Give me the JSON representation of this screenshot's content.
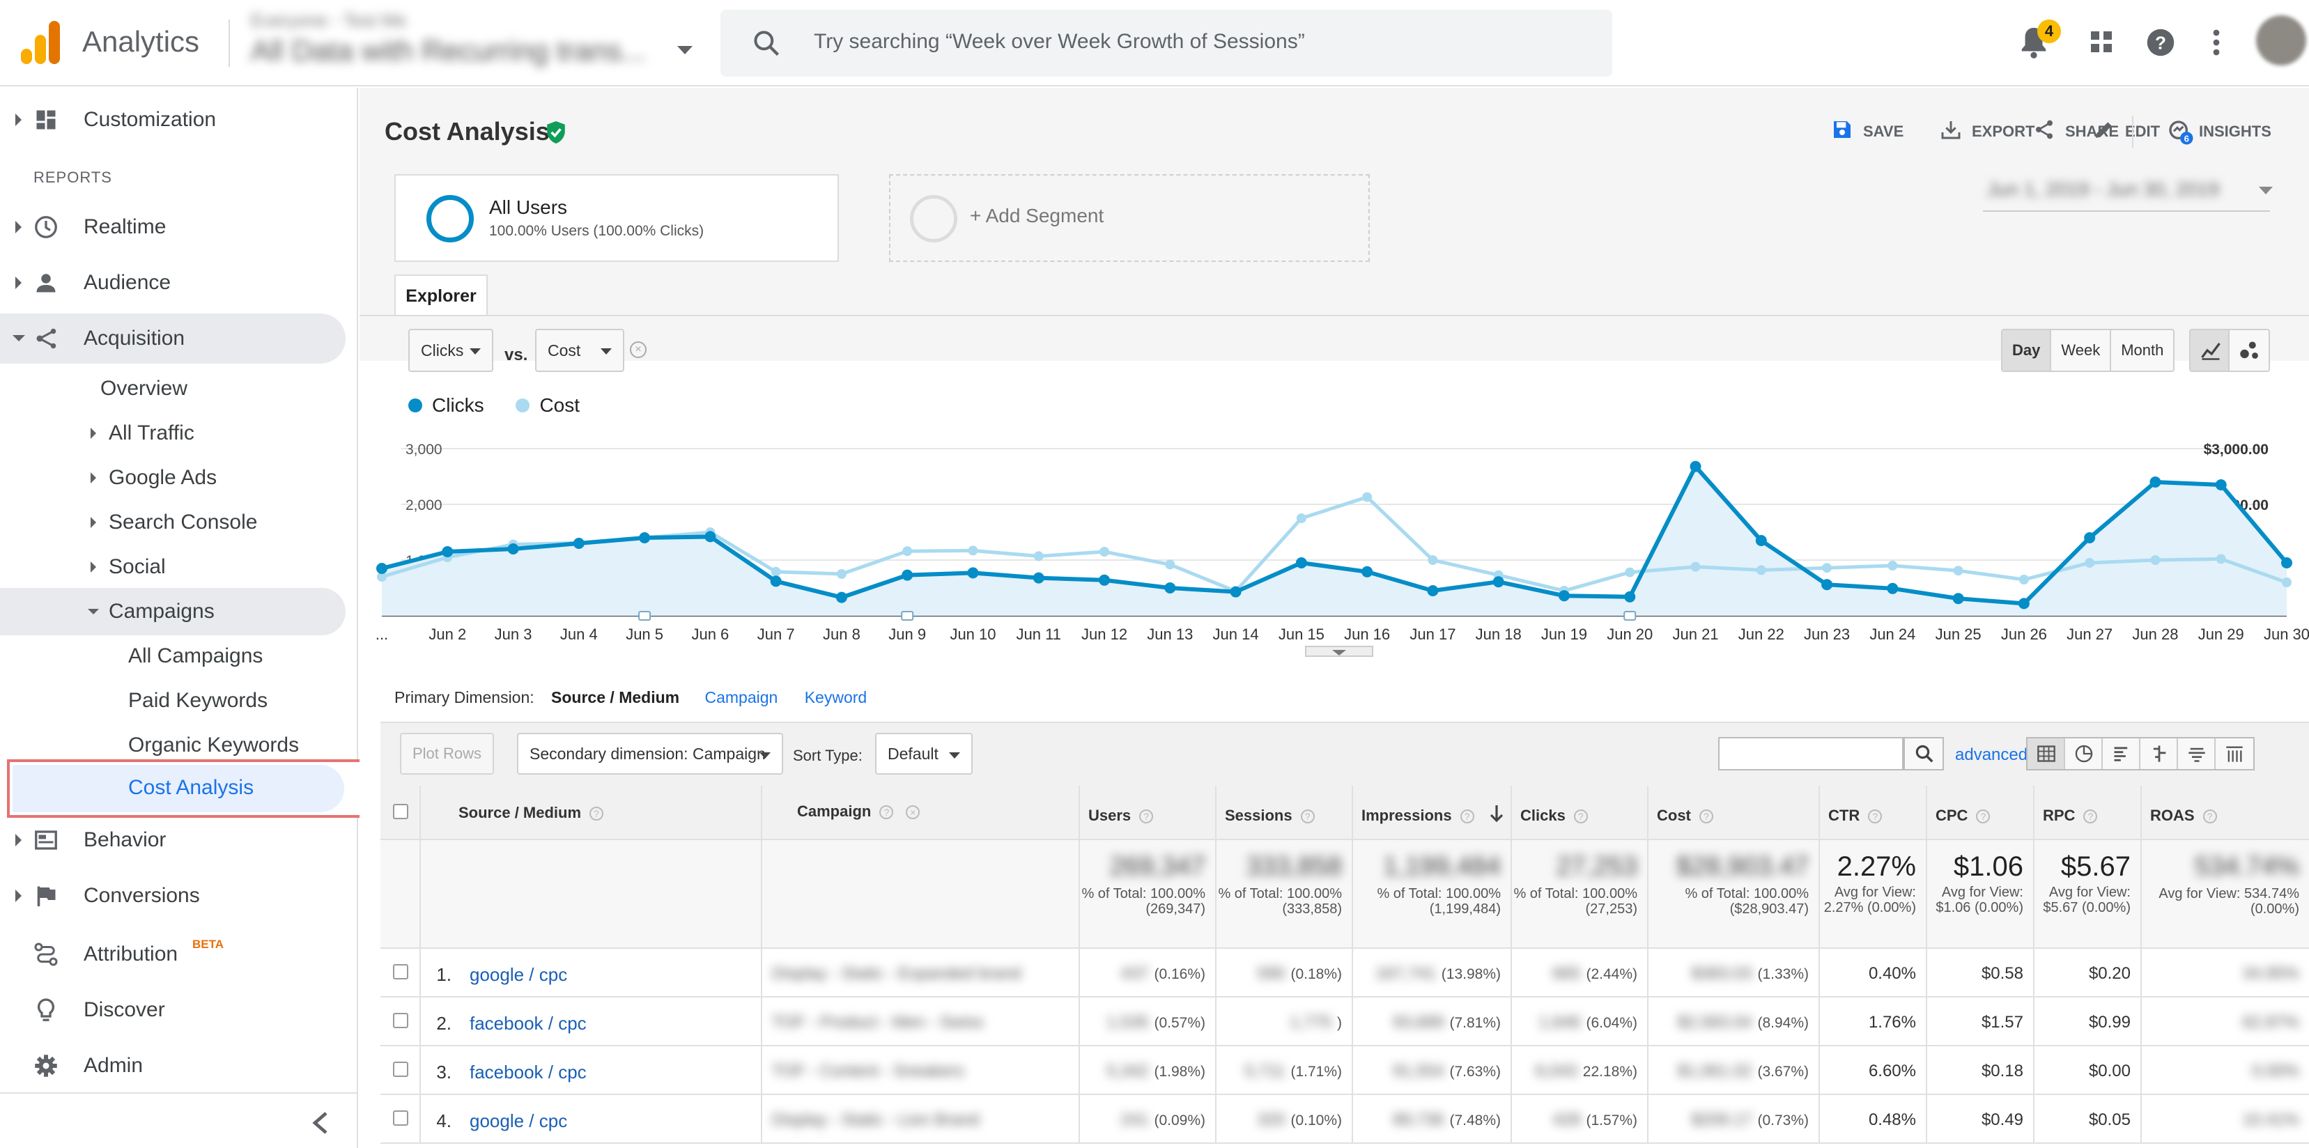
{
  "app": {
    "title": "Analytics"
  },
  "account": {
    "line1": "Everyone - Test Me",
    "line2": "All Data with Recurring trans..."
  },
  "search": {
    "placeholder": "Try searching “Week over Week Growth of Sessions”"
  },
  "topbar": {
    "notification_count": "4",
    "icons": [
      "bell-icon",
      "apps-grid-icon",
      "help-icon",
      "more-vert-icon",
      "avatar"
    ]
  },
  "sidebar": {
    "customization": "Customization",
    "reports_header": "REPORTS",
    "realtime": "Realtime",
    "audience": "Audience",
    "acquisition": "Acquisition",
    "overview": "Overview",
    "all_traffic": "All Traffic",
    "google_ads": "Google Ads",
    "search_console": "Search Console",
    "social": "Social",
    "campaigns": "Campaigns",
    "all_campaigns": "All Campaigns",
    "paid_keywords": "Paid Keywords",
    "organic_keywords": "Organic Keywords",
    "cost_analysis": "Cost Analysis",
    "behavior": "Behavior",
    "conversions": "Conversions",
    "attribution": "Attribution",
    "attribution_badge": "BETA",
    "discover": "Discover",
    "admin": "Admin"
  },
  "header": {
    "title": "Cost Analysis",
    "actions": {
      "save": "SAVE",
      "export": "EXPORT",
      "share": "SHARE",
      "edit": "EDIT",
      "insights": "INSIGHTS"
    },
    "insights_badge": "6"
  },
  "segments": {
    "active_name": "All Users",
    "active_detail": "100.00% Users (100.00% Clicks)",
    "add_label": "+ Add Segment",
    "date_range": "Jun 1, 2019 - Jun 30, 2019"
  },
  "explorer": {
    "tab": "Explorer",
    "metric1": "Clicks",
    "vs": "vs.",
    "metric2": "Cost",
    "remove": "×",
    "granularity": [
      "Day",
      "Week",
      "Month"
    ],
    "granularity_selected": "Day"
  },
  "chart_data": {
    "type": "line",
    "categories": [
      "...",
      "Jun 2",
      "Jun 3",
      "Jun 4",
      "Jun 5",
      "Jun 6",
      "Jun 7",
      "Jun 8",
      "Jun 9",
      "Jun 10",
      "Jun 11",
      "Jun 12",
      "Jun 13",
      "Jun 14",
      "Jun 15",
      "Jun 16",
      "Jun 17",
      "Jun 18",
      "Jun 19",
      "Jun 20",
      "Jun 21",
      "Jun 22",
      "Jun 23",
      "Jun 24",
      "Jun 25",
      "Jun 26",
      "Jun 27",
      "Jun 28",
      "Jun 29",
      "Jun 30"
    ],
    "series": [
      {
        "name": "Clicks",
        "axis": "left",
        "color": "#058dc7",
        "values": [
          850,
          1150,
          1200,
          1300,
          1400,
          1420,
          620,
          330,
          730,
          770,
          680,
          640,
          500,
          430,
          950,
          790,
          450,
          610,
          360,
          340,
          2680,
          1350,
          560,
          490,
          310,
          220,
          1400,
          2400,
          2350,
          950
        ]
      },
      {
        "name": "Cost",
        "axis": "right",
        "color": "#a9daf0",
        "values": [
          700,
          1050,
          1280,
          1310,
          1400,
          1500,
          790,
          750,
          1160,
          1170,
          1070,
          1150,
          920,
          440,
          1750,
          2130,
          1000,
          730,
          450,
          780,
          880,
          820,
          860,
          900,
          810,
          650,
          950,
          1000,
          1020,
          600
        ]
      }
    ],
    "y_left": {
      "ticks": [
        "1,000",
        "2,000",
        "3,000"
      ],
      "range": [
        0,
        3000
      ]
    },
    "y_right": {
      "ticks": [
        "$1,000.00",
        "$2,000.00",
        "$3,000.00"
      ],
      "range": [
        0,
        3000
      ]
    },
    "legend": "top-left"
  },
  "table_controls": {
    "primary_dimension_label": "Primary Dimension:",
    "primary_current": "Source / Medium",
    "primary_links": [
      "Campaign",
      "Keyword"
    ],
    "plot_rows": "Plot Rows",
    "secondary_dimension": "Secondary dimension: Campaign",
    "sort_type_label": "Sort Type:",
    "sort_type": "Default",
    "advanced": "advanced"
  },
  "table": {
    "headers": [
      "Source / Medium",
      "Campaign",
      "Users",
      "Sessions",
      "Impressions",
      "Clicks",
      "Cost",
      "CTR",
      "CPC",
      "RPC",
      "ROAS"
    ],
    "totals": {
      "users": {
        "value": "269,347",
        "sub": "% of Total: 100.00% (269,347)"
      },
      "sessions": {
        "value": "333,858",
        "sub": "% of Total: 100.00% (333,858)"
      },
      "impressions": {
        "value": "1,199,484",
        "sub": "% of Total: 100.00% (1,199,484)"
      },
      "clicks": {
        "value": "27,253",
        "sub": "% of Total: 100.00% (27,253)"
      },
      "cost": {
        "value": "$28,903.47",
        "sub": "% of Total: 100.00% ($28,903.47)"
      },
      "ctr": {
        "value": "2.27%",
        "sub": "Avg for View: 2.27% (0.00%)"
      },
      "cpc": {
        "value": "$1.06",
        "sub": "Avg for View: $1.06 (0.00%)"
      },
      "rpc": {
        "value": "$5.67",
        "sub": "Avg for View: $5.67 (0.00%)"
      },
      "roas": {
        "value": "534.74%",
        "sub": "Avg for View: 534.74% (0.00%)"
      }
    },
    "rows": [
      {
        "idx": "1.",
        "source": "google / cpc",
        "campaign": "Display - Static - Expanded brand",
        "users": "437",
        "users_pct": "(0.16%)",
        "sessions": "590",
        "sessions_pct": "(0.18%)",
        "impressions": "167,741",
        "impressions_pct": "(13.98%)",
        "clicks": "665",
        "clicks_pct": "(2.44%)",
        "cost": "$383.03",
        "cost_pct": "(1.33%)",
        "ctr": "0.40%",
        "cpc": "$0.58",
        "rpc": "$0.20",
        "roas": "34.95%"
      },
      {
        "idx": "2.",
        "source": "facebook / cpc",
        "campaign": "TOF - Product - Men - Swiss",
        "users": "1,535",
        "users_pct": "(0.57%)",
        "sessions": "1,775",
        "sessions_pct": ")",
        "impressions": "93,689",
        "impressions_pct": "(7.81%)",
        "clicks": "1,646",
        "clicks_pct": "(6.04%)",
        "cost": "$2,583.04",
        "cost_pct": "(8.94%)",
        "ctr": "1.76%",
        "cpc": "$1.57",
        "rpc": "$0.99",
        "roas": "62.87%"
      },
      {
        "idx": "3.",
        "source": "facebook / cpc",
        "campaign": "TOF - Content - Sneakers",
        "users": "5,342",
        "users_pct": "(1.98%)",
        "sessions": "5,711",
        "sessions_pct": "(1.71%)",
        "impressions": "91,554",
        "impressions_pct": "(7.63%)",
        "clicks": "6,043",
        "clicks_pct": "22.18%)",
        "cost": "$1,061.02",
        "cost_pct": "(3.67%)",
        "ctr": "6.60%",
        "cpc": "$0.18",
        "rpc": "$0.00",
        "roas": "0.00%"
      },
      {
        "idx": "4.",
        "source": "google / cpc",
        "campaign": "Display - Static - Lion Brand",
        "users": "241",
        "users_pct": "(0.09%)",
        "sessions": "320",
        "sessions_pct": "(0.10%)",
        "impressions": "89,736",
        "impressions_pct": "(7.48%)",
        "clicks": "428",
        "clicks_pct": "(1.57%)",
        "cost": "$209.17",
        "cost_pct": "(0.73%)",
        "ctr": "0.48%",
        "cpc": "$0.49",
        "rpc": "$0.05",
        "roas": "10.41%"
      }
    ]
  }
}
